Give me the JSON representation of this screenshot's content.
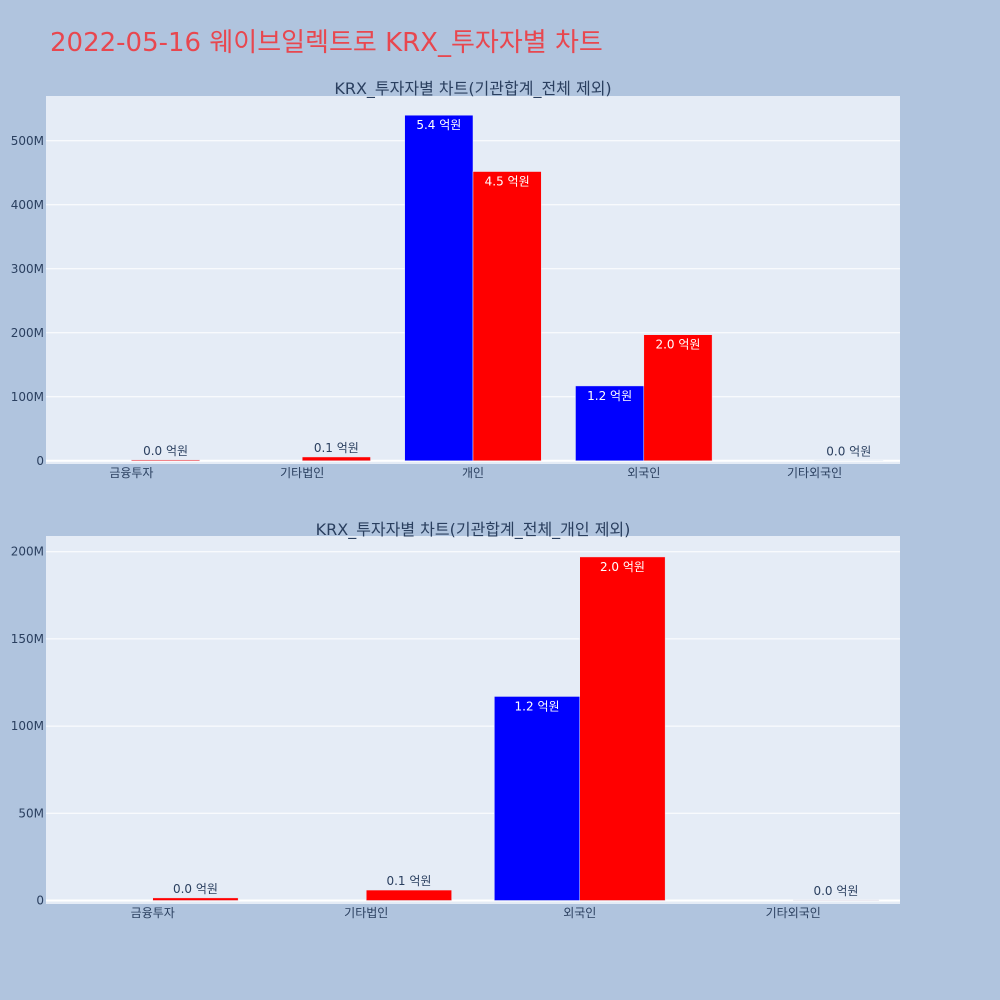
{
  "title": "2022-05-16 웨이브일렉트로 KRX_투자자별 차트",
  "chart_data": [
    {
      "type": "bar",
      "title": "KRX_투자자별 차트(기관합계_전체 제외)",
      "categories": [
        "금융투자",
        "기타법인",
        "개인",
        "외국인",
        "기타외국인"
      ],
      "series": [
        {
          "color": "#0000ff",
          "values": [
            0,
            0,
            540000000,
            117000000,
            0
          ],
          "labels": [
            "",
            "",
            "5.4 억원",
            "1.2 억원",
            ""
          ]
        },
        {
          "color": "#ff0000",
          "values": [
            1500000,
            6000000,
            452000000,
            197000000,
            300000
          ],
          "labels": [
            "0.0 억원",
            "0.1 억원",
            "4.5 억원",
            "2.0 억원",
            "0.0 억원"
          ]
        }
      ],
      "ylim": [
        -5000000,
        570000000
      ],
      "yticks": [
        0,
        100000000,
        200000000,
        300000000,
        400000000,
        500000000
      ],
      "ytick_labels": [
        "0",
        "100M",
        "200M",
        "300M",
        "400M",
        "500M"
      ],
      "grid": true
    },
    {
      "type": "bar",
      "title": "KRX_투자자별 차트(기관합계_전체_개인 제외)",
      "categories": [
        "금융투자",
        "기타법인",
        "외국인",
        "기타외국인"
      ],
      "series": [
        {
          "color": "#0000ff",
          "values": [
            0,
            0,
            117000000,
            0
          ],
          "labels": [
            "",
            "",
            "1.2 억원",
            ""
          ]
        },
        {
          "color": "#ff0000",
          "values": [
            1500000,
            6000000,
            197000000,
            300000
          ],
          "labels": [
            "0.0 억원",
            "0.1 억원",
            "2.0 억원",
            "0.0 억원"
          ]
        }
      ],
      "ylim": [
        -2000000,
        209000000
      ],
      "yticks": [
        0,
        50000000,
        100000000,
        150000000,
        200000000
      ],
      "ytick_labels": [
        "0",
        "50M",
        "100M",
        "150M",
        "200M"
      ],
      "grid": true
    }
  ]
}
